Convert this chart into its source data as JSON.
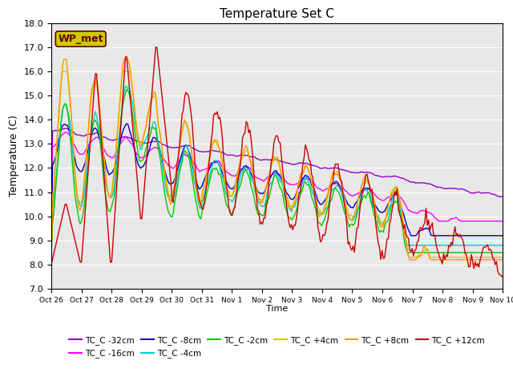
{
  "title": "Temperature Set C",
  "xlabel": "Time",
  "ylabel": "Temperature (C)",
  "ylim": [
    7.0,
    18.0
  ],
  "yticks": [
    7.0,
    8.0,
    9.0,
    10.0,
    11.0,
    12.0,
    13.0,
    14.0,
    15.0,
    16.0,
    17.0,
    18.0
  ],
  "xtick_labels": [
    "Oct 26",
    "Oct 27",
    "Oct 28",
    "Oct 29",
    "Oct 30",
    "Oct 31",
    "Nov 1",
    "Nov 2",
    "Nov 3",
    "Nov 4",
    "Nov 5",
    "Nov 6",
    "Nov 7",
    "Nov 8",
    "Nov 9",
    "Nov 10"
  ],
  "series_colors": {
    "TC_C -32cm": "#9900cc",
    "TC_C -16cm": "#ff00ff",
    "TC_C -8cm": "#0000cc",
    "TC_C -4cm": "#00cccc",
    "TC_C -2cm": "#00cc00",
    "TC_C +4cm": "#cccc00",
    "TC_C +8cm": "#ff9900",
    "TC_C +12cm": "#cc0000"
  },
  "wp_met_box_color": "#cccc00",
  "wp_met_text_color": "#660000",
  "plot_bg_color": "#e8e8e8",
  "legend_order": [
    "TC_C -32cm",
    "TC_C -16cm",
    "TC_C -8cm",
    "TC_C -4cm",
    "TC_C -2cm",
    "TC_C +4cm",
    "TC_C +8cm",
    "TC_C +12cm"
  ]
}
